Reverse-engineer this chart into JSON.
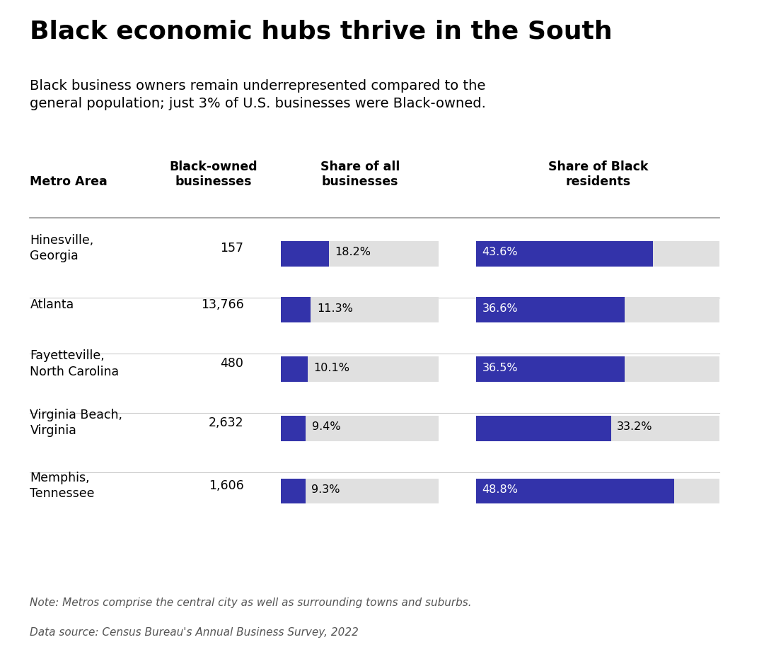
{
  "title": "Black economic hubs thrive in the South",
  "subtitle": "Black business owners remain underrepresented compared to the\ngeneral population; just 3% of U.S. businesses were Black-owned.",
  "col_headers": [
    "Black-owned\nbusinesses",
    "Share of all\nbusinesses",
    "Share of Black\nresidents"
  ],
  "metro_label": "Metro Area",
  "rows": [
    {
      "metro": "Hinesville,\nGeorgia",
      "businesses": "157",
      "share_biz": 18.2,
      "share_biz_label": "18.2%",
      "share_res": 43.6,
      "share_res_label": "43.6%"
    },
    {
      "metro": "Atlanta",
      "businesses": "13,766",
      "share_biz": 11.3,
      "share_biz_label": "11.3%",
      "share_res": 36.6,
      "share_res_label": "36.6%"
    },
    {
      "metro": "Fayetteville,\nNorth Carolina",
      "businesses": "480",
      "share_biz": 10.1,
      "share_biz_label": "10.1%",
      "share_res": 36.5,
      "share_res_label": "36.5%"
    },
    {
      "metro": "Virginia Beach,\nVirginia",
      "businesses": "2,632",
      "share_biz": 9.4,
      "share_biz_label": "9.4%",
      "share_res": 33.2,
      "share_res_label": "33.2%"
    },
    {
      "metro": "Memphis,\nTennessee",
      "businesses": "1,606",
      "share_biz": 9.3,
      "share_biz_label": "9.3%",
      "share_res": 48.8,
      "share_res_label": "48.8%"
    }
  ],
  "bar_color": "#3333AA",
  "bar_bg_color": "#E0E0E0",
  "bar_max": 60.0,
  "note": "Note: Metros comprise the central city as well as surrounding towns and suburbs.",
  "source": "Data source: Census Bureau's Annual Business Survey, 2022",
  "bg_color": "#FFFFFF",
  "text_color": "#000000",
  "note_color": "#555555"
}
